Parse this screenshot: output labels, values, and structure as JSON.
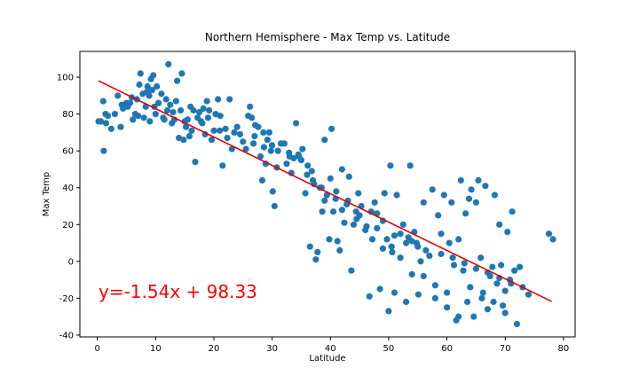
{
  "chart_data": {
    "type": "scatter",
    "title": "Northern Hemisphere - Max Temp vs. Latitude",
    "xlabel": "Latitude",
    "ylabel": "Max Temp",
    "xlim": [
      -3,
      82
    ],
    "ylim": [
      -41,
      114
    ],
    "xticks": [
      0,
      10,
      20,
      30,
      40,
      50,
      60,
      70,
      80
    ],
    "yticks": [
      -40,
      -20,
      0,
      20,
      40,
      60,
      80,
      100
    ],
    "grid": false,
    "point_color": "#1f77b4",
    "line_color": "#e00000",
    "annotation_color": "#ff0000",
    "regression": {
      "slope": -1.54,
      "intercept": 98.33,
      "x_range": [
        0.2,
        78
      ]
    },
    "annotation": "y=-1.54x + 98.33",
    "points": [
      [
        0.2,
        76
      ],
      [
        0.6,
        76
      ],
      [
        1,
        87
      ],
      [
        1.1,
        60
      ],
      [
        1.4,
        80
      ],
      [
        1.8,
        79
      ],
      [
        2.4,
        72
      ],
      [
        3,
        80
      ],
      [
        3.5,
        90
      ],
      [
        4,
        73
      ],
      [
        4.4,
        83
      ],
      [
        5,
        86
      ],
      [
        5.2,
        84
      ],
      [
        5.6,
        86
      ],
      [
        5.9,
        89
      ],
      [
        6.1,
        77
      ],
      [
        6.5,
        80
      ],
      [
        7,
        79
      ],
      [
        7.2,
        96
      ],
      [
        7.4,
        102
      ],
      [
        7.8,
        91
      ],
      [
        8,
        78
      ],
      [
        8.3,
        84
      ],
      [
        8.6,
        95
      ],
      [
        8.9,
        90
      ],
      [
        9,
        76
      ],
      [
        9.2,
        99
      ],
      [
        9.4,
        93
      ],
      [
        9.6,
        101
      ],
      [
        10,
        80
      ],
      [
        10.2,
        95
      ],
      [
        10.5,
        86
      ],
      [
        11,
        91
      ],
      [
        11.3,
        78
      ],
      [
        11.5,
        77
      ],
      [
        12,
        82
      ],
      [
        12.2,
        107
      ],
      [
        12.5,
        85
      ],
      [
        12.8,
        75
      ],
      [
        13.2,
        77
      ],
      [
        13.5,
        87
      ],
      [
        13.7,
        98
      ],
      [
        14,
        67
      ],
      [
        14.3,
        82
      ],
      [
        14.5,
        102
      ],
      [
        14.8,
        66
      ],
      [
        15.2,
        73
      ],
      [
        15.5,
        77
      ],
      [
        15.8,
        68
      ],
      [
        16.2,
        71
      ],
      [
        16.5,
        82
      ],
      [
        16.8,
        54
      ],
      [
        17.2,
        78
      ],
      [
        17.5,
        81
      ],
      [
        17.8,
        76
      ],
      [
        18.2,
        83
      ],
      [
        18.5,
        69
      ],
      [
        18.8,
        87
      ],
      [
        19.2,
        82
      ],
      [
        19.6,
        66
      ],
      [
        20,
        71
      ],
      [
        20.3,
        80
      ],
      [
        20.7,
        88
      ],
      [
        21.1,
        79
      ],
      [
        21.5,
        52
      ],
      [
        22,
        72
      ],
      [
        22.3,
        67
      ],
      [
        22.7,
        88
      ],
      [
        23.1,
        61
      ],
      [
        24.5,
        69
      ],
      [
        25,
        65
      ],
      [
        25.5,
        61
      ],
      [
        25.9,
        79
      ],
      [
        26.2,
        84
      ],
      [
        26.5,
        78
      ],
      [
        26.8,
        64
      ],
      [
        27.1,
        74
      ],
      [
        27.6,
        73
      ],
      [
        28,
        57
      ],
      [
        28.3,
        44
      ],
      [
        28.6,
        62
      ],
      [
        28.9,
        53
      ],
      [
        29.2,
        66
      ],
      [
        29.5,
        70
      ],
      [
        29.8,
        60
      ],
      [
        30.1,
        38
      ],
      [
        30.4,
        30
      ],
      [
        30.8,
        51
      ],
      [
        31.5,
        64
      ],
      [
        32.1,
        64
      ],
      [
        32.5,
        53
      ],
      [
        32.9,
        59
      ],
      [
        33.3,
        48
      ],
      [
        33.7,
        56
      ],
      [
        34.1,
        75
      ],
      [
        34.6,
        57
      ],
      [
        35.2,
        61
      ],
      [
        35.7,
        37
      ],
      [
        36.1,
        52
      ],
      [
        36.5,
        8
      ],
      [
        36.8,
        49
      ],
      [
        37.2,
        42
      ],
      [
        37.5,
        1
      ],
      [
        37.8,
        5
      ],
      [
        38.2,
        40
      ],
      [
        38.6,
        27
      ],
      [
        39,
        66
      ],
      [
        39.4,
        36
      ],
      [
        39.8,
        12
      ],
      [
        40.2,
        72
      ],
      [
        40.5,
        27
      ],
      [
        40.9,
        34
      ],
      [
        41.2,
        11
      ],
      [
        41.6,
        6
      ],
      [
        42,
        50
      ],
      [
        42.4,
        21
      ],
      [
        42.8,
        31
      ],
      [
        43.2,
        46
      ],
      [
        43.6,
        -5
      ],
      [
        44,
        20
      ],
      [
        44.4,
        27
      ],
      [
        44.8,
        37
      ],
      [
        45.3,
        30
      ],
      [
        46.2,
        19
      ],
      [
        46.7,
        -19
      ],
      [
        47.2,
        12
      ],
      [
        47.6,
        32
      ],
      [
        48,
        26
      ],
      [
        48.5,
        -15
      ],
      [
        49,
        7
      ],
      [
        49.3,
        37
      ],
      [
        49.7,
        12
      ],
      [
        50,
        -27
      ],
      [
        50.3,
        52
      ],
      [
        50.6,
        5
      ],
      [
        51,
        -17
      ],
      [
        51.4,
        36
      ],
      [
        52,
        2
      ],
      [
        52.5,
        20
      ],
      [
        53,
        -22
      ],
      [
        53.4,
        13
      ],
      [
        53.7,
        52
      ],
      [
        54,
        -7
      ],
      [
        54.4,
        16
      ],
      [
        54.8,
        10
      ],
      [
        55.1,
        -18
      ],
      [
        55.5,
        0
      ],
      [
        56,
        32
      ],
      [
        56.4,
        6
      ],
      [
        57.5,
        39
      ],
      [
        58,
        -20
      ],
      [
        58.5,
        25
      ],
      [
        59,
        15
      ],
      [
        59.5,
        36
      ],
      [
        60,
        -17
      ],
      [
        60.4,
        10
      ],
      [
        60.8,
        32
      ],
      [
        61.2,
        -2
      ],
      [
        61.6,
        -32
      ],
      [
        62,
        12
      ],
      [
        62.4,
        44
      ],
      [
        62.8,
        -5
      ],
      [
        63.2,
        26
      ],
      [
        63.5,
        -22
      ],
      [
        63.8,
        34
      ],
      [
        64.2,
        39
      ],
      [
        64.6,
        -30
      ],
      [
        65,
        32
      ],
      [
        65.4,
        44
      ],
      [
        65.8,
        2
      ],
      [
        66.2,
        -17
      ],
      [
        66.6,
        41
      ],
      [
        67,
        -26
      ],
      [
        67.4,
        -8
      ],
      [
        67.8,
        -3
      ],
      [
        68.2,
        36
      ],
      [
        68.6,
        -12
      ],
      [
        69,
        20
      ],
      [
        69.3,
        -2
      ],
      [
        69.6,
        -24
      ],
      [
        70,
        -16
      ],
      [
        70.4,
        16
      ],
      [
        70.8,
        -10
      ],
      [
        71.2,
        27
      ],
      [
        71.6,
        -5
      ],
      [
        72,
        -34
      ],
      [
        72.5,
        -3
      ],
      [
        73,
        -14
      ],
      [
        74,
        -18
      ],
      [
        77.5,
        15
      ],
      [
        78.2,
        12
      ],
      [
        1.5,
        75
      ],
      [
        4.2,
        85
      ],
      [
        6.8,
        88
      ],
      [
        9.8,
        84
      ],
      [
        13,
        81
      ],
      [
        15,
        76
      ],
      [
        18,
        75
      ],
      [
        21,
        71
      ],
      [
        23.5,
        70
      ],
      [
        27,
        68
      ],
      [
        30,
        63
      ],
      [
        33,
        57
      ],
      [
        35,
        55
      ],
      [
        37,
        44
      ],
      [
        38.5,
        40
      ],
      [
        40,
        45
      ],
      [
        41,
        38
      ],
      [
        43,
        33
      ],
      [
        45,
        25
      ],
      [
        47,
        27
      ],
      [
        49,
        22
      ],
      [
        51,
        14
      ],
      [
        53,
        10
      ],
      [
        55,
        8
      ],
      [
        57,
        3
      ],
      [
        59,
        4
      ],
      [
        61,
        2
      ],
      [
        63,
        -1
      ],
      [
        65,
        -4
      ],
      [
        67,
        -6
      ],
      [
        69,
        -9
      ],
      [
        71,
        -12
      ],
      [
        8.5,
        92
      ],
      [
        11.8,
        88
      ],
      [
        16,
        84
      ],
      [
        19,
        78
      ],
      [
        24,
        73
      ],
      [
        28.5,
        70
      ],
      [
        31,
        60
      ],
      [
        34.5,
        58
      ],
      [
        36,
        47
      ],
      [
        39,
        33
      ],
      [
        42,
        28
      ],
      [
        44.5,
        23
      ],
      [
        46,
        17
      ],
      [
        48,
        18
      ],
      [
        50.5,
        8
      ],
      [
        52,
        15
      ],
      [
        54,
        11
      ],
      [
        56,
        -8
      ],
      [
        58,
        -13
      ],
      [
        60,
        -25
      ],
      [
        62,
        -30
      ],
      [
        64,
        -14
      ],
      [
        66,
        -20
      ],
      [
        68,
        -22
      ],
      [
        70,
        -28
      ]
    ]
  }
}
